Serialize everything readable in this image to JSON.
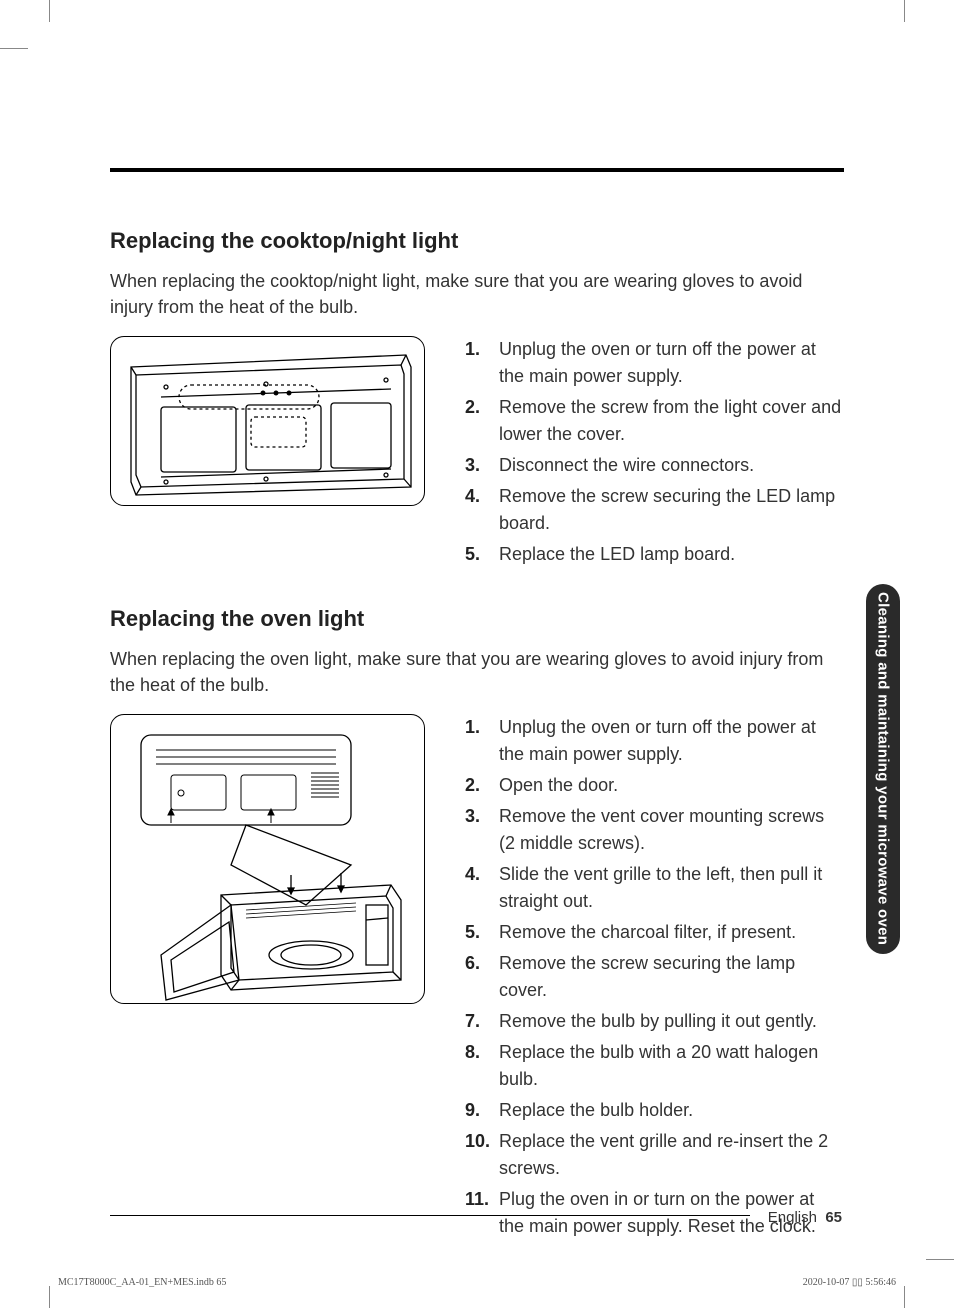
{
  "section1": {
    "heading": "Replacing the cooktop/night light",
    "intro": "When replacing the cooktop/night light, make sure that you are wearing gloves to avoid injury from the heat of the bulb.",
    "steps": [
      "Unplug the oven or turn off the power at the main power supply.",
      "Remove the screw from the light cover and lower the cover.",
      "Disconnect the wire connectors.",
      "Remove the screw securing the LED lamp board.",
      "Replace the LED lamp board."
    ]
  },
  "section2": {
    "heading": "Replacing the oven light",
    "intro": "When replacing the oven light, make sure that you are wearing gloves to avoid injury from the heat of the bulb.",
    "steps": [
      "Unplug the oven or turn off the power at the main power supply.",
      "Open the door.",
      "Remove the vent cover mounting screws (2 middle screws).",
      "Slide the vent grille to the left, then pull it straight out.",
      "Remove the charcoal filter, if present.",
      "Remove the screw securing the lamp cover.",
      "Remove the bulb by pulling it out gently.",
      "Replace the bulb with a 20 watt halogen bulb.",
      "Replace the bulb holder.",
      "Replace the vent grille and re-insert the 2 screws.",
      "Plug the oven in or turn on the power at the main power supply. Reset the clock."
    ]
  },
  "sideTab": "Cleaning and maintaining your microwave oven",
  "footer": {
    "language": "English",
    "page": "65"
  },
  "meta": {
    "left": "MC17T8000C_AA-01_EN+MES.indb   65",
    "right": "2020-10-07   ▯▯ 5:56:46"
  },
  "style": {
    "body_font": "Arial",
    "heading_fontsize": 22,
    "body_fontsize": 18,
    "text_color": "#333333",
    "heading_color": "#222222",
    "rule_color": "#000000",
    "side_tab_bg": "#2a2a2a",
    "side_tab_text": "#ffffff",
    "page_bg": "#ffffff"
  }
}
